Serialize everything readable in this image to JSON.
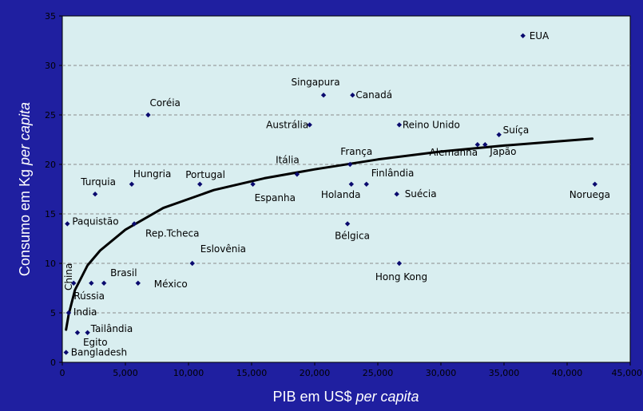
{
  "colors": {
    "background": "#1f1fa0",
    "plot_area": "#d9eef0",
    "marker": "#0a0a6e",
    "curve": "#000000",
    "axis_title": "#ffffff",
    "grid": "#8c8c8c"
  },
  "chart_data": {
    "type": "scatter",
    "title": "",
    "xlabel": "PIB em US$ ",
    "xlabel_italic": "per capita",
    "ylabel": "Consumo em Kg ",
    "ylabel_italic": "per capita",
    "xlim": [
      0,
      45000
    ],
    "ylim": [
      0,
      35
    ],
    "x_ticks": [
      0,
      5000,
      10000,
      15000,
      20000,
      25000,
      30000,
      35000,
      40000,
      45000
    ],
    "x_tick_labels": [
      "0",
      "5,000",
      "10,000",
      "15,000",
      "20,000",
      "25,000",
      "30,000",
      "35,000",
      "40,000",
      "45,000"
    ],
    "y_ticks": [
      0,
      5,
      10,
      15,
      20,
      25,
      30,
      35
    ],
    "y_tick_labels": [
      "0",
      "5",
      "10",
      "15",
      "20",
      "25",
      "30",
      "35"
    ],
    "grid": "horizontal-dashed",
    "legend": "none",
    "points": [
      {
        "name": "EUA",
        "x": 36500,
        "y": 33
      },
      {
        "name": "Singapura",
        "x": 20700,
        "y": 27
      },
      {
        "name": "Canadá",
        "x": 23000,
        "y": 27
      },
      {
        "name": "Coréia",
        "x": 6800,
        "y": 25
      },
      {
        "name": "Austrália",
        "x": 19600,
        "y": 24
      },
      {
        "name": "Reino Unido",
        "x": 26700,
        "y": 24
      },
      {
        "name": "Suíça",
        "x": 34600,
        "y": 23
      },
      {
        "name": "Alemanha",
        "x": 32900,
        "y": 22
      },
      {
        "name": "Japão",
        "x": 33500,
        "y": 22
      },
      {
        "name": "França",
        "x": 22800,
        "y": 20
      },
      {
        "name": "Itália",
        "x": 18600,
        "y": 19
      },
      {
        "name": "Turquia",
        "x": 2600,
        "y": 17
      },
      {
        "name": "Hungria",
        "x": 5500,
        "y": 18
      },
      {
        "name": "Portugal",
        "x": 10900,
        "y": 18
      },
      {
        "name": "Espanha",
        "x": 15100,
        "y": 18
      },
      {
        "name": "Finlândia",
        "x": 24100,
        "y": 18
      },
      {
        "name": "Holanda",
        "x": 22900,
        "y": 18
      },
      {
        "name": "Suécia",
        "x": 26500,
        "y": 17
      },
      {
        "name": "Noruega",
        "x": 42200,
        "y": 18
      },
      {
        "name": "Paquistão",
        "x": 400,
        "y": 14
      },
      {
        "name": "Rep.Tcheca",
        "x": 5700,
        "y": 14
      },
      {
        "name": "Bélgica",
        "x": 22600,
        "y": 14
      },
      {
        "name": "China",
        "x": 900,
        "y": 8
      },
      {
        "name": "Brasil",
        "x": 3300,
        "y": 8
      },
      {
        "name": "Eslovênia",
        "x": 10300,
        "y": 10
      },
      {
        "name": "Hong Kong",
        "x": 26700,
        "y": 10
      },
      {
        "name": "Rússia",
        "x": 2300,
        "y": 8
      },
      {
        "name": "México",
        "x": 6000,
        "y": 8
      },
      {
        "name": "India",
        "x": 500,
        "y": 5
      },
      {
        "name": "Tailândia",
        "x": 2000,
        "y": 3
      },
      {
        "name": "Egito",
        "x": 1200,
        "y": 3
      },
      {
        "name": "Bangladesh",
        "x": 300,
        "y": 1
      }
    ],
    "trendline": {
      "type": "logarithmic",
      "x": [
        300,
        500,
        1000,
        2000,
        3000,
        5000,
        8000,
        12000,
        16000,
        20000,
        25000,
        30000,
        35000,
        42000
      ],
      "y": [
        3.3,
        4.8,
        7.3,
        9.8,
        11.3,
        13.4,
        15.6,
        17.4,
        18.6,
        19.5,
        20.5,
        21.3,
        21.9,
        22.6
      ]
    }
  }
}
